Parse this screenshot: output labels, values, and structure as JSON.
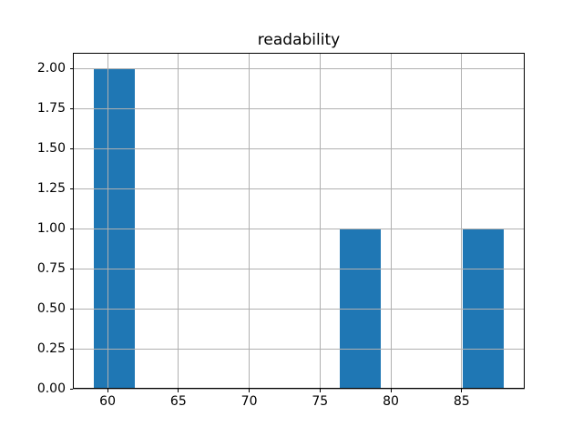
{
  "figure": {
    "background": "#ffffff"
  },
  "chart_data": {
    "type": "bar",
    "subtype": "histogram",
    "title": "readability",
    "xlabel": "",
    "ylabel": "",
    "bar_color": "#1f77b4",
    "grid_color": "#b0b0b0",
    "frame_color": "#000000",
    "bin_edges": [
      59.0,
      61.9,
      64.8,
      67.7,
      70.6,
      73.5,
      76.4,
      79.3,
      82.2,
      85.1,
      88.0
    ],
    "counts": [
      2,
      0,
      0,
      0,
      0,
      0,
      1,
      0,
      0,
      1
    ],
    "xlim": [
      57.55,
      89.45
    ],
    "ylim": [
      0,
      2.1
    ],
    "xticks": [
      60,
      65,
      70,
      75,
      80,
      85
    ],
    "ytick_values": [
      0,
      0.25,
      0.5,
      0.75,
      1.0,
      1.25,
      1.5,
      1.75,
      2.0
    ],
    "ytick_labels": [
      "0.00",
      "0.25",
      "0.50",
      "0.75",
      "1.00",
      "1.25",
      "1.50",
      "1.75",
      "2.00"
    ],
    "grid": true,
    "grid_above_bars": true,
    "legend": false
  }
}
